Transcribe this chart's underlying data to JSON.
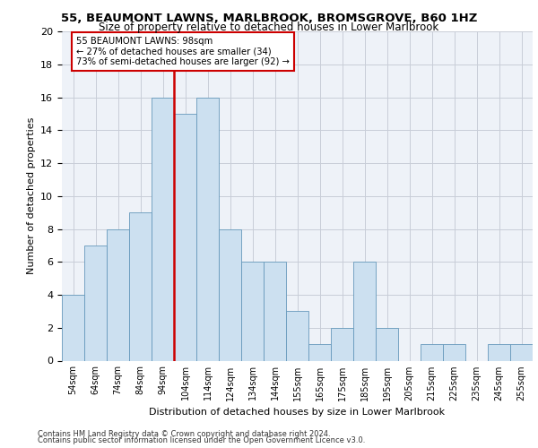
{
  "title1": "55, BEAUMONT LAWNS, MARLBROOK, BROMSGROVE, B60 1HZ",
  "title2": "Size of property relative to detached houses in Lower Marlbrook",
  "xlabel": "Distribution of detached houses by size in Lower Marlbrook",
  "ylabel": "Number of detached properties",
  "bar_labels": [
    "54sqm",
    "64sqm",
    "74sqm",
    "84sqm",
    "94sqm",
    "104sqm",
    "114sqm",
    "124sqm",
    "134sqm",
    "144sqm",
    "155sqm",
    "165sqm",
    "175sqm",
    "185sqm",
    "195sqm",
    "205sqm",
    "215sqm",
    "225sqm",
    "235sqm",
    "245sqm",
    "255sqm"
  ],
  "bar_values": [
    4,
    7,
    8,
    9,
    16,
    15,
    16,
    8,
    6,
    6,
    3,
    1,
    2,
    6,
    2,
    0,
    1,
    1,
    0,
    1,
    1
  ],
  "bar_color": "#cce0f0",
  "bar_edge_color": "#6699bb",
  "reference_line_x": 4.5,
  "reference_line_color": "#cc0000",
  "ylim": [
    0,
    20
  ],
  "yticks": [
    0,
    2,
    4,
    6,
    8,
    10,
    12,
    14,
    16,
    18,
    20
  ],
  "annotation_text": "55 BEAUMONT LAWNS: 98sqm\n← 27% of detached houses are smaller (34)\n73% of semi-detached houses are larger (92) →",
  "annotation_box_color": "#ffffff",
  "annotation_box_edge_color": "#cc0000",
  "footer_line1": "Contains HM Land Registry data © Crown copyright and database right 2024.",
  "footer_line2": "Contains public sector information licensed under the Open Government Licence v3.0.",
  "background_color": "#eef2f8",
  "grid_color": "#c8cdd8"
}
